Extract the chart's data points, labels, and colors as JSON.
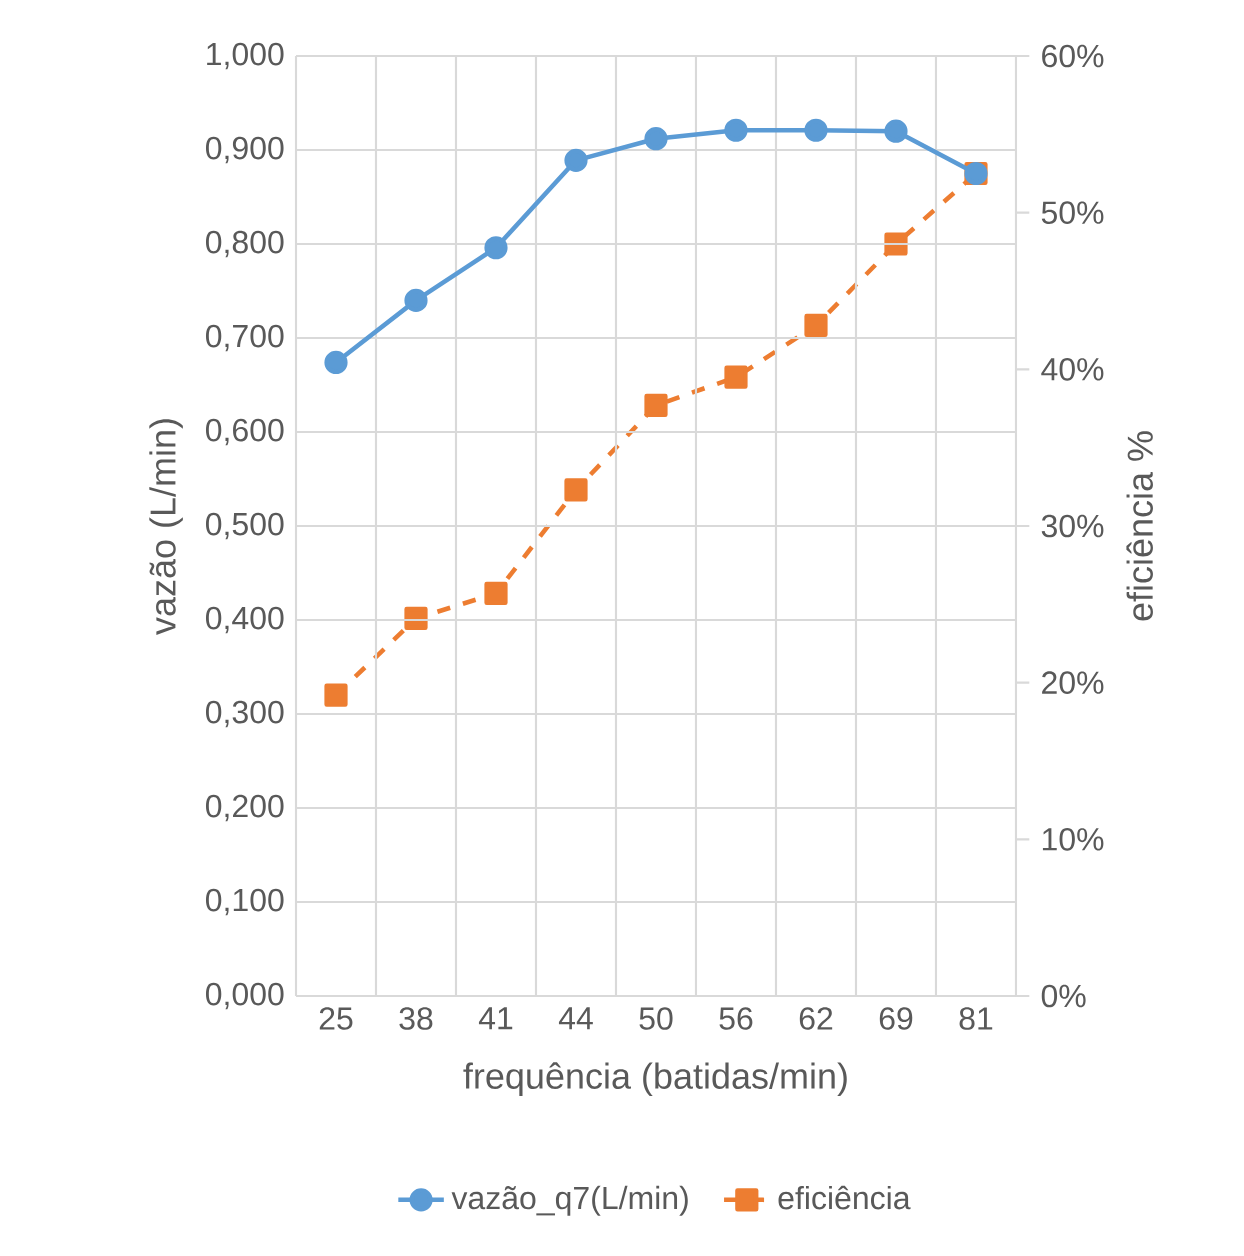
{
  "chart_data": {
    "type": "line",
    "xlabel": "frequência (batidas/min)",
    "ylabel": "vazão (L/min)",
    "y2label": "eficiência %",
    "categories": [
      "25",
      "38",
      "41",
      "44",
      "50",
      "56",
      "62",
      "69",
      "81"
    ],
    "ylim": [
      0,
      1
    ],
    "yticks": [
      {
        "value": 0,
        "label": "0,000"
      },
      {
        "value": 0.1,
        "label": "0,100"
      },
      {
        "value": 0.2,
        "label": "0,200"
      },
      {
        "value": 0.3,
        "label": "0,300"
      },
      {
        "value": 0.4,
        "label": "0,400"
      },
      {
        "value": 0.5,
        "label": "0,500"
      },
      {
        "value": 0.6,
        "label": "0,600"
      },
      {
        "value": 0.7,
        "label": "0,700"
      },
      {
        "value": 0.8,
        "label": "0,800"
      },
      {
        "value": 0.9,
        "label": "0,900"
      },
      {
        "value": 1,
        "label": "1,000"
      }
    ],
    "y2lim": [
      0,
      60
    ],
    "y2ticks": [
      {
        "value": 0,
        "label": "0%"
      },
      {
        "value": 10,
        "label": "10%"
      },
      {
        "value": 20,
        "label": "20%"
      },
      {
        "value": 30,
        "label": "30%"
      },
      {
        "value": 40,
        "label": "40%"
      },
      {
        "value": 50,
        "label": "50%"
      },
      {
        "value": 60,
        "label": "60%"
      }
    ],
    "grid": true,
    "legend": "bottom",
    "series": [
      {
        "name": "vazão_q7(L/min)",
        "color": "#5b9bd5",
        "marker": "circle",
        "line_style": "solid",
        "values": [
          0.674,
          0.74,
          0.796,
          0.889,
          0.912,
          0.921,
          0.921,
          0.92,
          0.875
        ]
      },
      {
        "name": "eficiência",
        "color": "#ed7d31",
        "marker": "square",
        "line_style": "dashed",
        "axis": "y2",
        "values": [
          19.2,
          24.1,
          25.7,
          32.3,
          37.7,
          39.5,
          42.8,
          48.0,
          52.5
        ]
      }
    ]
  }
}
